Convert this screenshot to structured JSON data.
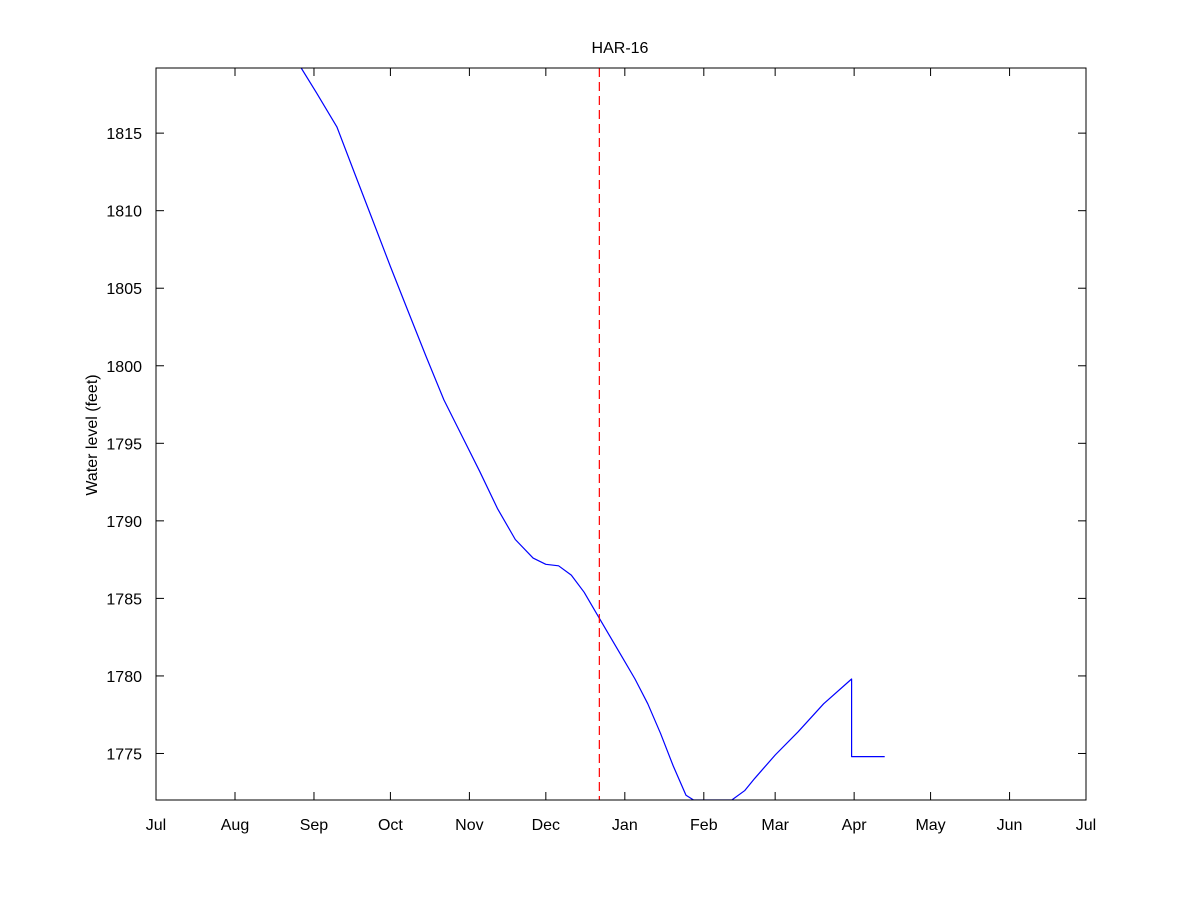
{
  "chart_data": {
    "type": "line",
    "title": "HAR-16",
    "xlabel": "",
    "ylabel": "Water level (feet)",
    "x_ticks": [
      "Jul",
      "Aug",
      "Sep",
      "Oct",
      "Nov",
      "Dec",
      "Jan",
      "Feb",
      "Mar",
      "Apr",
      "May",
      "Jun",
      "Jul"
    ],
    "y_ticks": [
      1775,
      1780,
      1785,
      1790,
      1795,
      1800,
      1805,
      1810,
      1815
    ],
    "xlim": [
      "Jul 1",
      "Jul 1 (next year)"
    ],
    "ylim": [
      1772,
      1819.2
    ],
    "grid": false,
    "legend": "none",
    "series": [
      {
        "color": "#0000ff",
        "points": [
          [
            "Aug 27",
            1819.2
          ],
          [
            "Sep 2",
            1817.6
          ],
          [
            "Sep 10",
            1815.4
          ],
          [
            "Sep 17",
            1812.4
          ],
          [
            "Sep 24",
            1809.4
          ],
          [
            "Oct 1",
            1806.4
          ],
          [
            "Oct 8",
            1803.5
          ],
          [
            "Oct 15",
            1800.6
          ],
          [
            "Oct 22",
            1797.8
          ],
          [
            "Oct 29",
            1795.5
          ],
          [
            "Nov 5",
            1793.2
          ],
          [
            "Nov 12",
            1790.8
          ],
          [
            "Nov 19",
            1788.8
          ],
          [
            "Nov 26",
            1787.6
          ],
          [
            "Dec 1",
            1787.2
          ],
          [
            "Dec 6",
            1787.1
          ],
          [
            "Dec 11",
            1786.5
          ],
          [
            "Dec 16",
            1785.4
          ],
          [
            "Dec 21",
            1784.0
          ],
          [
            "Dec 26",
            1782.6
          ],
          [
            "Dec 31",
            1781.2
          ],
          [
            "Jan 5",
            1779.8
          ],
          [
            "Jan 10",
            1778.2
          ],
          [
            "Jan 15",
            1776.3
          ],
          [
            "Jan 20",
            1774.2
          ],
          [
            "Jan 25",
            1772.3
          ],
          [
            "Jan 28",
            1772.0
          ],
          [
            "Feb 5",
            1772.0
          ],
          [
            "Feb 12",
            1772.0
          ],
          [
            "Feb 17",
            1772.6
          ],
          [
            "Feb 21",
            1773.4
          ],
          [
            "Mar 1",
            1774.9
          ],
          [
            "Mar 10",
            1776.4
          ],
          [
            "Mar 20",
            1778.2
          ],
          [
            "Mar 31",
            1779.8
          ],
          [
            "Mar 31",
            1774.8
          ],
          [
            "Apr 13",
            1774.8
          ]
        ]
      },
      {
        "style": "dashed",
        "color": "#ff0000",
        "vertical_line_at": "Dec 22"
      }
    ]
  }
}
